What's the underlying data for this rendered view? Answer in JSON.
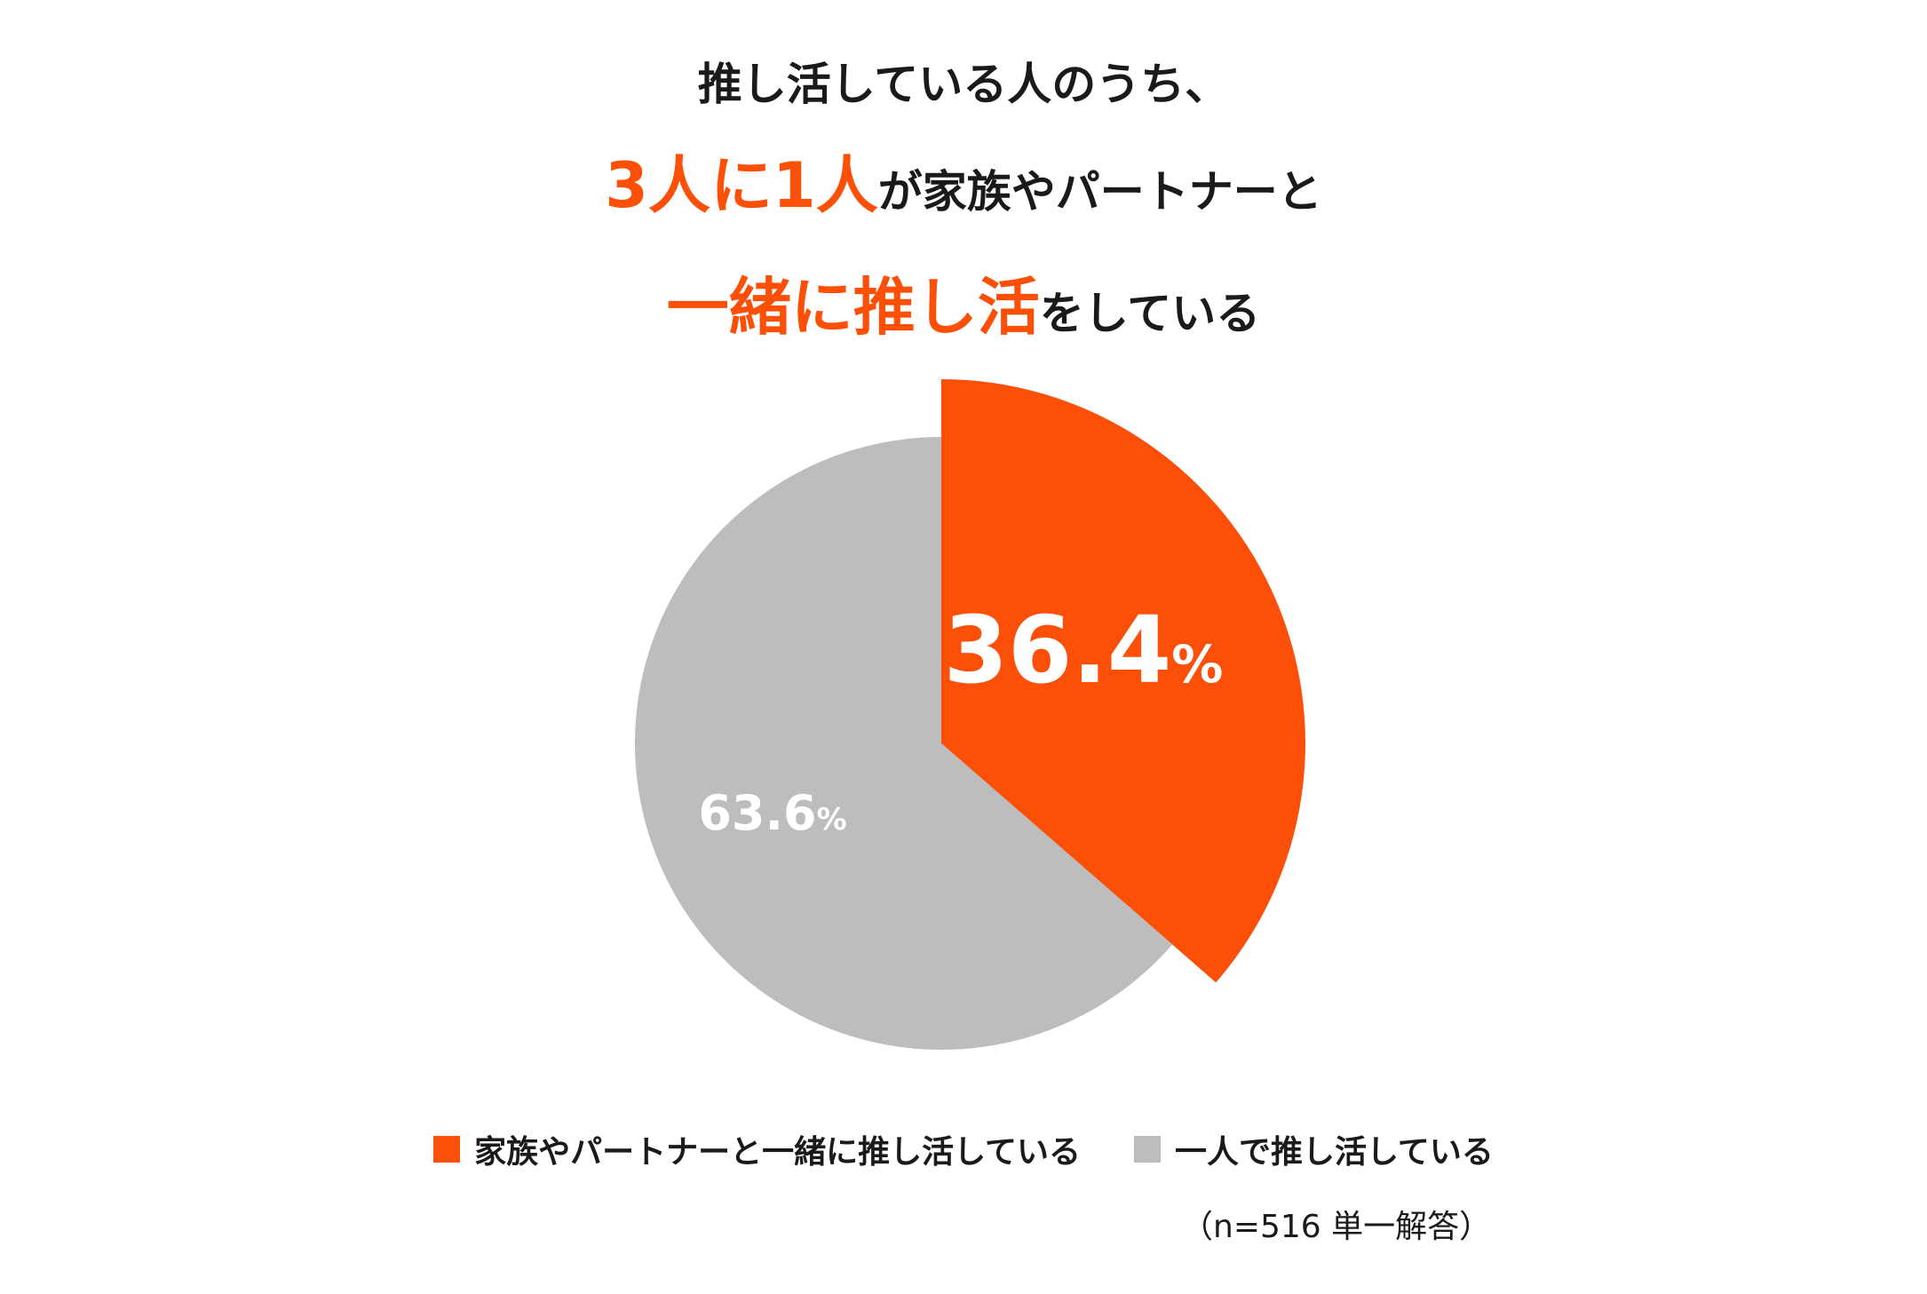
{
  "chart_data": {
    "type": "pie",
    "title_lines": [
      {
        "parts": [
          {
            "text": "推し活している人のうち、",
            "highlight": false
          }
        ]
      },
      {
        "parts": [
          {
            "text": "3人に1人",
            "highlight": true
          },
          {
            "text": "が家族やパートナーと",
            "highlight": false
          }
        ]
      },
      {
        "parts": [
          {
            "text": "一緒に推し活",
            "highlight": true
          },
          {
            "text": "をしている",
            "highlight": false
          }
        ]
      }
    ],
    "slices": [
      {
        "name": "家族やパートナーと一緒に推し活している",
        "value": 36.4,
        "label_number": "36.4",
        "label_unit": "%",
        "color": "#fc5008",
        "exploded": true
      },
      {
        "name": "一人で推し活している",
        "value": 63.6,
        "label_number": "63.6",
        "label_unit": "%",
        "color": "#bdbdbd",
        "exploded": false
      }
    ],
    "start_angle_deg": 0,
    "direction": "clockwise",
    "legend_position": "bottom-center",
    "note": "（n=516 単一解答）"
  },
  "colors": {
    "accent": "#fc5008",
    "secondary": "#bdbdbd",
    "text": "#1a1a1a",
    "label_text": "#ffffff"
  }
}
